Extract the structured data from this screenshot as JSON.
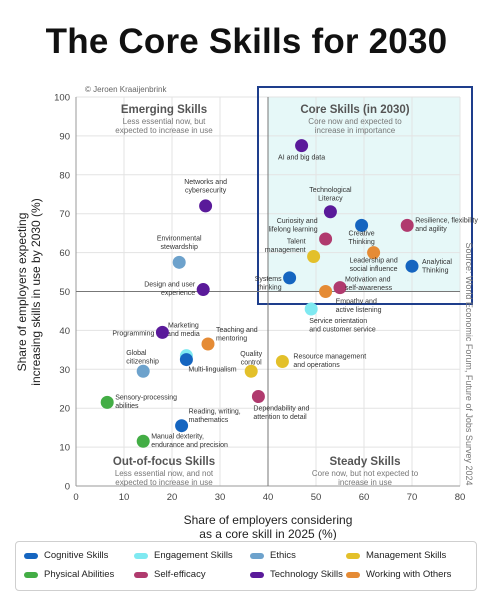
{
  "title": "The Core Skills for 2030",
  "credit": "© Jeroen Kraaijenbrink",
  "source_note": "Source: World Economic Forum, Future of Jobs Survey 2024",
  "colors": {
    "Cognitive Skills": "#1565c0",
    "Engagement Skills": "#7fe9f1",
    "Ethics": "#6da2cc",
    "Management Skills": "#e3c02a",
    "Physical Abilities": "#43ad45",
    "Self-efficacy": "#b03a6e",
    "Technology Skills": "#5a1a9a",
    "Working with Others": "#e58b35"
  },
  "legend": [
    {
      "label": "Cognitive Skills"
    },
    {
      "label": "Engagement Skills"
    },
    {
      "label": "Ethics"
    },
    {
      "label": "Management Skills"
    },
    {
      "label": "Physical Abilities"
    },
    {
      "label": "Self-efficacy"
    },
    {
      "label": "Technology Skills"
    },
    {
      "label": "Working with Others"
    }
  ],
  "quadrants": {
    "emerging": {
      "title": "Emerging Skills",
      "line1": "Less essential now, but",
      "line2": "expected to increase in use"
    },
    "core": {
      "title": "Core Skills (in 2030)",
      "line1": "Core now and expected to",
      "line2": "increase in importance"
    },
    "out_of_focus": {
      "title": "Out-of-focus Skills",
      "line1": "Less essential now, and not",
      "line2": "expected to increase in use"
    },
    "steady": {
      "title": "Steady Skills",
      "line1": "Core now, but not expected to",
      "line2": "increase in use"
    }
  },
  "chart_data": {
    "type": "scatter",
    "xlabel": "Share of employers considering as a core skill in 2025 (%)",
    "xlabel_lines": [
      "Share of employers considering",
      "as a core skill in 2025 (%)"
    ],
    "ylabel": "Share of employers expecting increasing skills in use by 2030 (%)",
    "ylabel_lines": [
      "Share of employers expecting",
      "increasing skills in use by 2030 (%)"
    ],
    "xlim": [
      0,
      80
    ],
    "ylim": [
      0,
      100
    ],
    "xticks": [
      0,
      10,
      20,
      30,
      40,
      50,
      60,
      70,
      80
    ],
    "yticks": [
      0,
      10,
      20,
      30,
      40,
      50,
      60,
      70,
      80,
      90,
      100
    ],
    "divider_x": 40,
    "divider_y": 50,
    "grid": true,
    "points": [
      {
        "label": [
          "AI and big data"
        ],
        "x": 47,
        "y": 87.5,
        "category": "Technology Skills"
      },
      {
        "label": [
          "Technological",
          "Literacy"
        ],
        "x": 53,
        "y": 70.5,
        "category": "Technology Skills"
      },
      {
        "label": [
          "Curiosity and",
          "lifelong learning"
        ],
        "x": 52,
        "y": 63.5,
        "category": "Self-efficacy"
      },
      {
        "label": [
          "Creative",
          "Thinking"
        ],
        "x": 59.5,
        "y": 67,
        "category": "Cognitive Skills"
      },
      {
        "label": [
          "Resilience, flexibility",
          "and agility"
        ],
        "x": 69,
        "y": 67,
        "category": "Self-efficacy"
      },
      {
        "label": [
          "Talent",
          "management"
        ],
        "x": 49.5,
        "y": 59,
        "category": "Management Skills"
      },
      {
        "label": [
          "Leadership and",
          "social influence"
        ],
        "x": 62,
        "y": 60,
        "category": "Working with Others"
      },
      {
        "label": [
          "Analytical",
          "Thinking"
        ],
        "x": 70,
        "y": 56.5,
        "category": "Cognitive Skills"
      },
      {
        "label": [
          "Systems",
          "thinking"
        ],
        "x": 44.5,
        "y": 53.5,
        "category": "Cognitive Skills"
      },
      {
        "label": [
          "Motivation and",
          "self-awareness"
        ],
        "x": 55,
        "y": 51,
        "category": "Self-efficacy"
      },
      {
        "label": [
          "Empathy and",
          "active listening"
        ],
        "x": 52,
        "y": 50,
        "category": "Working with Others"
      },
      {
        "label": [
          "Service orientation",
          "and customer service"
        ],
        "x": 49,
        "y": 45.5,
        "category": "Engagement Skills"
      },
      {
        "label": [
          "Networks and",
          "cybersecurity"
        ],
        "x": 27,
        "y": 72,
        "category": "Technology Skills"
      },
      {
        "label": [
          "Environmental",
          "stewardship"
        ],
        "x": 21.5,
        "y": 57.5,
        "category": "Ethics"
      },
      {
        "label": [
          "Design and user",
          "experience"
        ],
        "x": 26.5,
        "y": 50.5,
        "category": "Technology Skills"
      },
      {
        "label": [
          "Marketing",
          "and media"
        ],
        "x": 23,
        "y": 33.5,
        "category": "Engagement Skills"
      },
      {
        "label": [
          "Programming"
        ],
        "x": 18,
        "y": 39.5,
        "category": "Technology Skills"
      },
      {
        "label": [
          "Teaching and",
          "mentoring"
        ],
        "x": 27.5,
        "y": 36.5,
        "category": "Working with Others"
      },
      {
        "label": [
          "Global",
          "citizenship"
        ],
        "x": 14,
        "y": 29.5,
        "category": "Ethics"
      },
      {
        "label": [
          "Multi-lingualism"
        ],
        "x": 23,
        "y": 32.5,
        "category": "Cognitive Skills"
      },
      {
        "label": [
          "Quality",
          "control"
        ],
        "x": 36.5,
        "y": 29.5,
        "category": "Management Skills"
      },
      {
        "label": [
          "Resource management",
          "and operations"
        ],
        "x": 43,
        "y": 32,
        "category": "Management Skills"
      },
      {
        "label": [
          "Sensory-processing",
          "abilities"
        ],
        "x": 6.5,
        "y": 21.5,
        "category": "Physical Abilities"
      },
      {
        "label": [
          "Dependability and",
          "attention to detail"
        ],
        "x": 38,
        "y": 23,
        "category": "Self-efficacy"
      },
      {
        "label": [
          "Reading, writing,",
          "mathematics"
        ],
        "x": 22,
        "y": 15.5,
        "category": "Cognitive Skills"
      },
      {
        "label": [
          "Manual dexterity,",
          "endurance and precision"
        ],
        "x": 14,
        "y": 11.5,
        "category": "Physical Abilities"
      }
    ]
  }
}
